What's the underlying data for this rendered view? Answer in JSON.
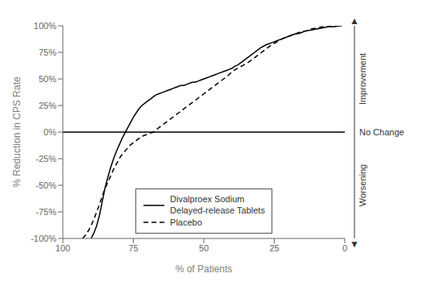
{
  "chart_data": {
    "type": "line",
    "title": "",
    "xlabel": "% of Patients",
    "ylabel": "% Reduction in CPS Rate",
    "xlim": [
      100,
      0
    ],
    "ylim": [
      -100,
      100
    ],
    "xticks": [
      100,
      75,
      50,
      25,
      0
    ],
    "yticks": [
      {
        "value": -100,
        "label": "-100%"
      },
      {
        "value": -75,
        "label": "-75%"
      },
      {
        "value": -50,
        "label": "-50%"
      },
      {
        "value": -25,
        "label": "-25%"
      },
      {
        "value": 0,
        "label": "0%"
      },
      {
        "value": 25,
        "label": "25%"
      },
      {
        "value": 50,
        "label": "50%"
      },
      {
        "value": 75,
        "label": "75%"
      },
      {
        "value": 100,
        "label": "100%"
      }
    ],
    "grid": false,
    "legend": "lower center",
    "series": [
      {
        "name": "Divalproex Sodium\nDelayed-release Tablets",
        "color": "#000000",
        "line_style": "solid",
        "x": [
          90,
          89,
          88,
          87,
          86,
          85,
          84,
          83,
          82,
          81,
          80,
          79,
          78,
          77,
          76,
          75,
          74,
          73,
          72,
          71,
          70,
          69,
          68,
          67,
          66,
          65,
          64,
          63,
          62,
          61,
          60,
          59,
          58,
          57,
          56,
          55,
          54,
          53,
          52,
          51,
          50,
          49,
          48,
          47,
          46,
          45,
          44,
          43,
          42,
          41,
          40,
          39,
          38,
          37,
          36,
          35,
          34,
          33,
          32,
          31,
          30,
          28,
          26,
          24,
          22,
          20,
          18,
          16,
          14,
          12,
          10,
          8,
          6,
          4,
          2,
          1
        ],
        "values": [
          -100,
          -95,
          -88,
          -78,
          -65,
          -52,
          -42,
          -33,
          -25,
          -18,
          -12,
          -6,
          -1,
          4,
          9,
          14,
          18,
          22,
          25,
          27,
          29,
          31,
          33,
          35,
          36,
          37,
          38,
          39,
          40,
          41,
          42,
          43,
          44,
          44,
          45,
          46,
          47,
          47,
          48,
          49,
          50,
          51,
          52,
          53,
          54,
          55,
          56,
          57,
          58,
          59,
          60,
          62,
          63,
          65,
          67,
          69,
          71,
          73,
          75,
          77,
          79,
          82,
          84,
          86,
          88,
          90,
          92,
          93,
          95,
          96,
          97,
          98,
          99,
          99,
          100,
          100
        ]
      },
      {
        "name": "Placebo",
        "color": "#000000",
        "line_style": "dashed",
        "x": [
          93,
          92,
          91,
          90,
          89,
          88,
          87,
          86,
          85,
          84,
          83,
          82,
          81,
          80,
          79,
          78,
          77,
          76,
          75,
          74,
          73,
          72,
          71,
          70,
          69,
          68,
          67,
          66,
          65,
          64,
          63,
          62,
          61,
          60,
          59,
          58,
          57,
          56,
          55,
          54,
          53,
          52,
          51,
          50,
          49,
          48,
          47,
          46,
          45,
          44,
          43,
          42,
          41,
          40,
          38,
          36,
          34,
          32,
          30,
          28,
          26,
          24,
          22,
          20,
          18,
          16,
          14,
          12,
          10,
          8,
          6,
          4,
          2,
          1
        ],
        "values": [
          -100,
          -97,
          -93,
          -88,
          -82,
          -75,
          -68,
          -60,
          -53,
          -47,
          -41,
          -35,
          -30,
          -25,
          -21,
          -18,
          -15,
          -12,
          -10,
          -8,
          -6,
          -4,
          -3,
          -2,
          -1,
          0,
          2,
          4,
          6,
          8,
          10,
          12,
          14,
          16,
          18,
          20,
          22,
          24,
          26,
          28,
          30,
          32,
          34,
          36,
          38,
          40,
          42,
          44,
          46,
          48,
          50,
          52,
          54,
          57,
          60,
          63,
          66,
          70,
          74,
          78,
          82,
          85,
          88,
          90,
          92,
          94,
          95,
          97,
          98,
          99,
          99,
          100,
          100,
          100
        ]
      }
    ],
    "reference_lines": [
      {
        "y": 0,
        "color": "#000000"
      }
    ],
    "annotations": [
      {
        "text": "No Change",
        "y": 0
      },
      {
        "text": "Improvement",
        "y_range": [
          0,
          100
        ]
      },
      {
        "text": "Worsening",
        "y_range": [
          -100,
          0
        ]
      },
      {
        "text": "▲",
        "y": 100
      },
      {
        "text": "▼",
        "y": -100
      }
    ]
  }
}
